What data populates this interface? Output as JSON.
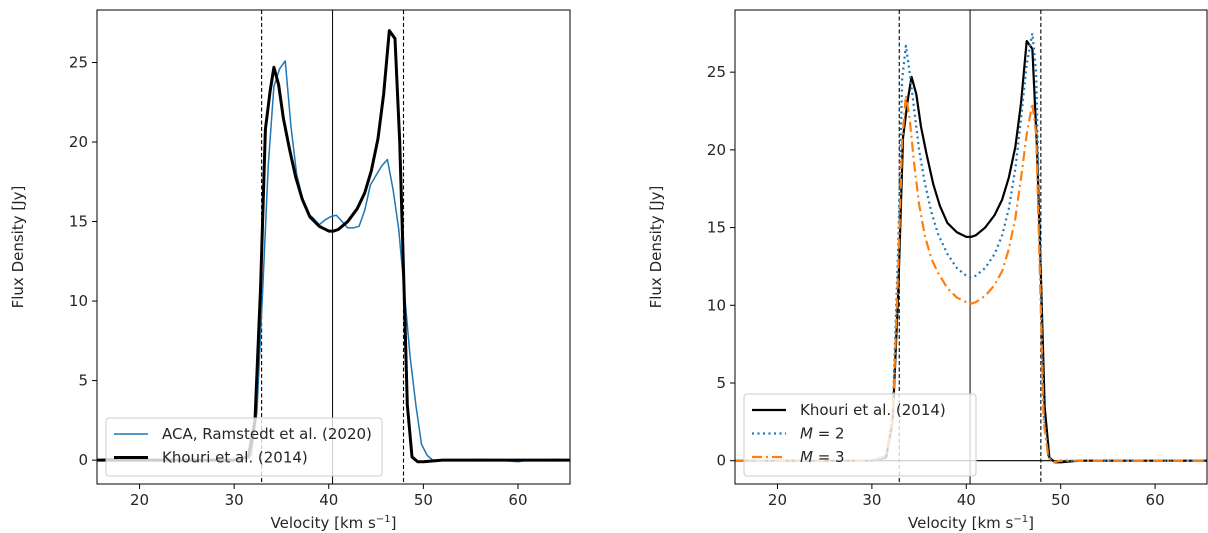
{
  "chart_data": [
    {
      "type": "line",
      "xlabel": "Velocity [km s",
      "xlabel_sup": "−1",
      "xlabel_end": "]",
      "ylabel": "Flux Density [Jy]",
      "xlim": [
        15.5,
        65.5
      ],
      "ylim": [
        -1.5,
        28.3
      ],
      "xticks": [
        20,
        30,
        40,
        50,
        60
      ],
      "yticks": [
        0,
        5,
        10,
        15,
        20,
        25
      ],
      "vlines": [
        {
          "x": 32.9,
          "style": "dashed"
        },
        {
          "x": 40.4,
          "style": "solid"
        },
        {
          "x": 47.9,
          "style": "dashed"
        }
      ],
      "legend_loc": "lower-left",
      "series": [
        {
          "name": "ACA, Ramstedt et al. (2020)",
          "color": "#1f77b4",
          "style": "solid",
          "width": 1.5,
          "x": [
            15.5,
            17,
            18.5,
            20,
            22,
            24,
            26,
            28,
            30,
            31,
            31.8,
            32.4,
            33.0,
            33.6,
            34.2,
            34.8,
            35.4,
            36.0,
            36.6,
            37.2,
            37.8,
            38.4,
            39.0,
            39.6,
            40.2,
            40.8,
            41.4,
            42.0,
            42.6,
            43.2,
            43.8,
            44.4,
            45.0,
            45.6,
            46.2,
            46.8,
            47.4,
            48.0,
            48.6,
            49.2,
            49.8,
            50.4,
            51,
            52,
            54,
            56,
            58,
            60,
            61,
            62,
            64,
            65.5
          ],
          "y": [
            0.0,
            0.1,
            0.0,
            0.05,
            0.0,
            0.05,
            0.0,
            0.0,
            0.05,
            0.1,
            0.3,
            3.0,
            10.5,
            18.5,
            23.5,
            24.6,
            25.1,
            21.0,
            18.0,
            16.5,
            15.5,
            15.2,
            14.8,
            15.1,
            15.3,
            15.4,
            15.0,
            14.6,
            14.6,
            14.7,
            15.7,
            17.3,
            17.9,
            18.5,
            18.9,
            17.0,
            14.5,
            10.5,
            6.5,
            3.5,
            1.0,
            0.3,
            0.0,
            0.0,
            0.0,
            0.05,
            0.0,
            -0.1,
            0.0,
            0.0,
            0.05,
            0.0
          ]
        },
        {
          "name": "Khouri et al. (2014)",
          "color": "#000000",
          "style": "solid",
          "width": 3,
          "x": [
            15.5,
            20,
            25,
            30,
            31.5,
            32.2,
            32.8,
            33.3,
            33.8,
            34.2,
            34.7,
            35.2,
            35.8,
            36.5,
            37.2,
            38.0,
            39.0,
            40.0,
            40.5,
            41.0,
            42.0,
            43.0,
            43.8,
            44.5,
            45.2,
            45.8,
            46.4,
            47.0,
            47.5,
            47.9,
            48.3,
            48.8,
            49.4,
            50.0,
            52,
            55,
            60,
            65.5
          ],
          "y": [
            0.0,
            0.0,
            0.0,
            0.0,
            0.2,
            2.5,
            11.0,
            20.8,
            23.2,
            24.7,
            23.6,
            21.5,
            19.7,
            17.8,
            16.4,
            15.3,
            14.7,
            14.4,
            14.4,
            14.5,
            15.0,
            15.8,
            16.8,
            18.2,
            20.2,
            23.0,
            27.0,
            26.5,
            20.0,
            12.0,
            3.5,
            0.2,
            -0.1,
            -0.1,
            0.0,
            0.0,
            0.0,
            0.0
          ]
        }
      ]
    },
    {
      "type": "line",
      "xlabel": "Velocity [km s",
      "xlabel_sup": "−1",
      "xlabel_end": "]",
      "ylabel": "Flux Density [Jy]",
      "xlim": [
        15.5,
        65.5
      ],
      "ylim": [
        -1.5,
        29.0
      ],
      "xticks": [
        20,
        30,
        40,
        50,
        60
      ],
      "yticks": [
        0,
        5,
        10,
        15,
        20,
        25
      ],
      "hline": 0,
      "vlines": [
        {
          "x": 32.9,
          "style": "dashed"
        },
        {
          "x": 40.4,
          "style": "solid"
        },
        {
          "x": 47.9,
          "style": "dashed"
        }
      ],
      "legend_loc": "lower-left",
      "series": [
        {
          "name": "Khouri et al. (2014)",
          "name_italic": "",
          "name_rest": "",
          "color": "#000000",
          "style": "solid",
          "width": 2.2,
          "x": [
            15.5,
            20,
            25,
            30,
            31.5,
            32.2,
            32.8,
            33.3,
            33.8,
            34.2,
            34.7,
            35.2,
            35.8,
            36.5,
            37.2,
            38.0,
            39.0,
            40.0,
            40.5,
            41.0,
            42.0,
            43.0,
            43.8,
            44.5,
            45.2,
            45.8,
            46.4,
            47.0,
            47.5,
            47.9,
            48.3,
            48.8,
            49.4,
            50.0,
            52,
            55,
            60,
            65.5
          ],
          "y": [
            0.0,
            0.0,
            0.0,
            0.0,
            0.2,
            2.5,
            11.0,
            20.8,
            23.2,
            24.7,
            23.6,
            21.5,
            19.7,
            17.8,
            16.4,
            15.3,
            14.7,
            14.4,
            14.4,
            14.5,
            15.0,
            15.8,
            16.8,
            18.2,
            20.2,
            23.0,
            27.0,
            26.5,
            20.0,
            12.0,
            3.5,
            0.2,
            -0.1,
            -0.1,
            0.0,
            0.0,
            0.0,
            0.0
          ]
        },
        {
          "name": "",
          "name_italic": "M",
          "name_rest": " = 2",
          "color": "#1f77b4",
          "style": "dotted",
          "width": 2.2,
          "x": [
            15.5,
            20,
            25,
            30,
            31.5,
            32.2,
            32.8,
            33.2,
            33.6,
            34.0,
            34.5,
            35.0,
            35.6,
            36.3,
            37.0,
            38.0,
            39.0,
            40.0,
            40.5,
            41.0,
            42.0,
            43.0,
            43.8,
            44.5,
            45.2,
            45.8,
            46.4,
            47.0,
            47.4,
            47.8,
            48.2,
            48.7,
            49.3,
            50.0,
            52,
            55,
            60,
            65.5
          ],
          "y": [
            0.0,
            0.0,
            0.0,
            0.0,
            0.3,
            3.0,
            14.0,
            24.5,
            26.7,
            25.0,
            22.5,
            20.0,
            17.9,
            16.0,
            14.6,
            13.3,
            12.4,
            11.9,
            11.8,
            11.9,
            12.4,
            13.3,
            14.5,
            16.2,
            18.8,
            22.0,
            25.5,
            27.5,
            25.0,
            14.0,
            3.0,
            0.2,
            -0.1,
            0.0,
            0.0,
            0.0,
            0.0,
            0.0
          ]
        },
        {
          "name": "",
          "name_italic": "M",
          "name_rest": " = 3",
          "color": "#ff7f0e",
          "style": "dashdot",
          "width": 2.2,
          "x": [
            15.5,
            20,
            25,
            30,
            31.5,
            32.2,
            32.8,
            33.2,
            33.6,
            34.0,
            34.5,
            35.0,
            35.6,
            36.3,
            37.0,
            38.0,
            39.0,
            40.0,
            40.5,
            41.0,
            42.0,
            43.0,
            43.8,
            44.5,
            45.2,
            45.8,
            46.4,
            47.0,
            47.4,
            47.8,
            48.2,
            48.7,
            49.3,
            50.0,
            52,
            55,
            60,
            65.5
          ],
          "y": [
            0.0,
            0.0,
            0.0,
            0.0,
            0.3,
            2.5,
            12.5,
            20.5,
            23.5,
            22.0,
            19.0,
            16.5,
            14.5,
            13.0,
            12.1,
            11.1,
            10.5,
            10.2,
            10.1,
            10.2,
            10.6,
            11.3,
            12.2,
            13.6,
            15.6,
            18.2,
            21.0,
            23.0,
            21.0,
            12.0,
            2.5,
            0.2,
            -0.1,
            0.0,
            0.0,
            0.0,
            0.0,
            0.0
          ]
        }
      ]
    }
  ]
}
